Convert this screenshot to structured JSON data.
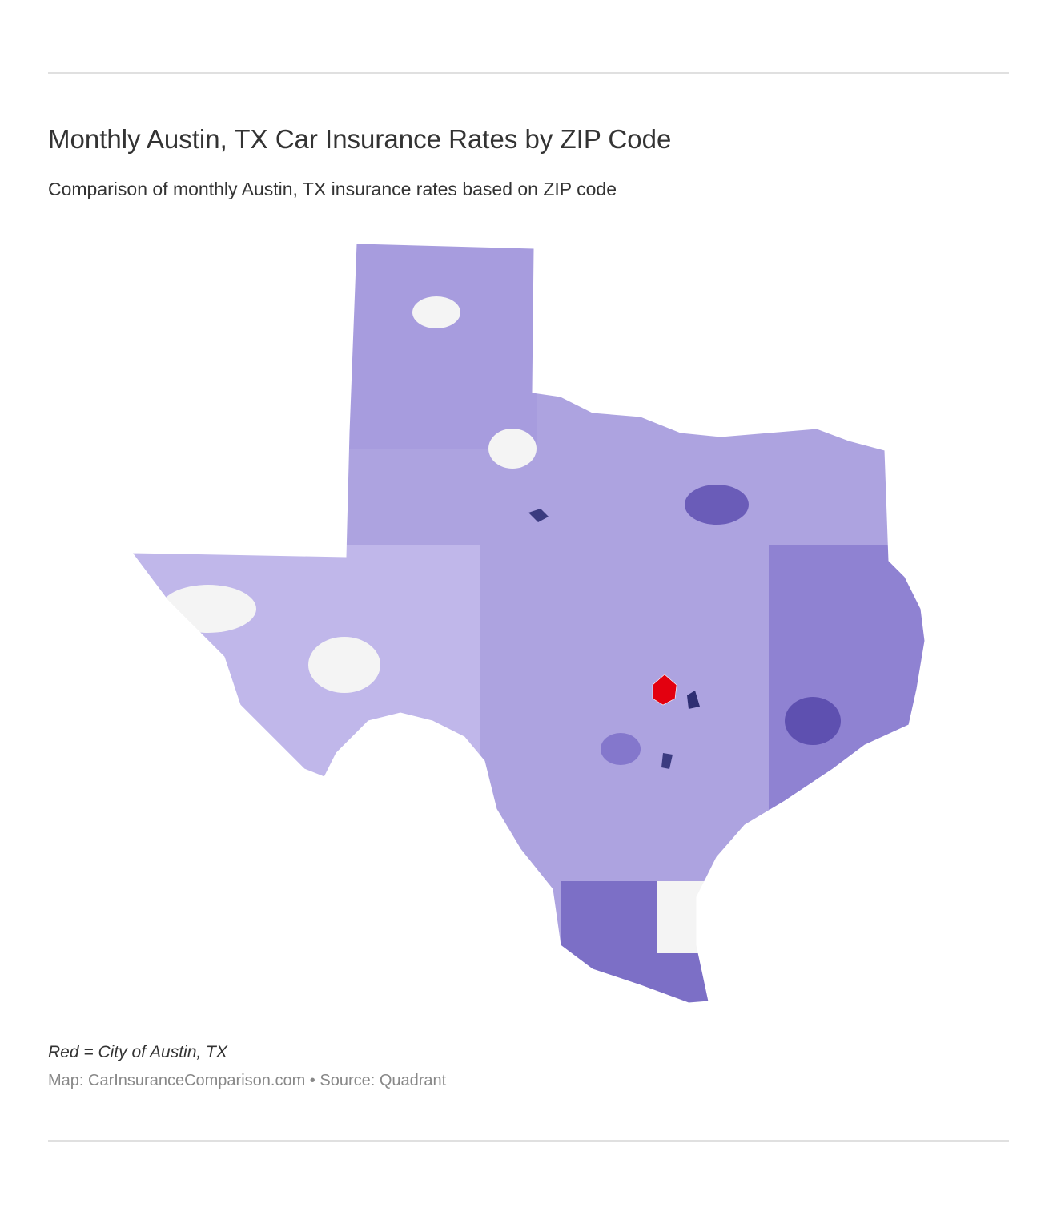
{
  "header": {
    "title": "Monthly Austin, TX Car Insurance Rates by ZIP Code",
    "subtitle": "Comparison of monthly Austin, TX insurance rates based on ZIP code"
  },
  "footer": {
    "note": "Red = City of Austin, TX",
    "credit": "Map: CarInsuranceComparison.com • Source: Quadrant"
  }
}
